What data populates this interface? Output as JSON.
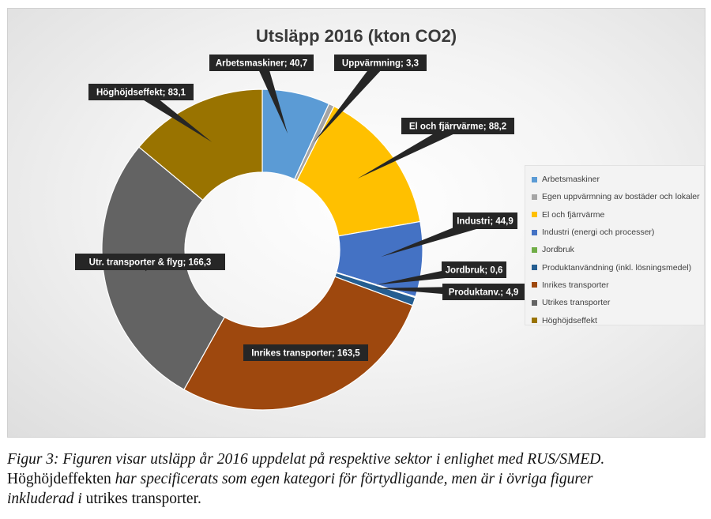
{
  "chart_data": {
    "type": "pie",
    "title": "Utsläpp 2016 (kton CO2)",
    "slices": [
      {
        "legend": "Arbetsmaskiner",
        "label": "Arbetsmaskiner; 40,7",
        "value": 40.7,
        "color": "#5B9BD5"
      },
      {
        "legend": "Egen uppvärmning av bostäder och lokaler",
        "label": "Uppvärmning; 3,3",
        "value": 3.3,
        "color": "#A5A5A5"
      },
      {
        "legend": "El och fjärrvärme",
        "label": "El och fjärrvärme; 88,2",
        "value": 88.2,
        "color": "#FFC000"
      },
      {
        "legend": "Industri (energi och processer)",
        "label": "Industri; 44,9",
        "value": 44.9,
        "color": "#4472C4"
      },
      {
        "legend": "Jordbruk",
        "label": "Jordbruk; 0,6",
        "value": 0.6,
        "color": "#70AD47"
      },
      {
        "legend": "Produktanvändning (inkl. lösningsmedel)",
        "label": "Produktanv.; 4,9",
        "value": 4.9,
        "color": "#255E91"
      },
      {
        "legend": "Inrikes transporter",
        "label": "Inrikes transporter; 163,5",
        "value": 163.5,
        "color": "#9E480E"
      },
      {
        "legend": "Utrikes transporter",
        "label": "Utr. transporter  & flyg; 166,3",
        "value": 166.3,
        "color": "#636363"
      },
      {
        "legend": "Höghöjdseffekt",
        "label": "Höghöjdseffekt; 83,1",
        "value": 83.1,
        "color": "#997300"
      }
    ],
    "legend_position": "right"
  },
  "caption": {
    "line1": "Figur 3: Figuren visar utsläpp år 2016 uppdelat på respektive sektor i enlighet med RUS/SMED.",
    "line2_a": "Höghöjdeffekten ",
    "line2_b": "har specificerats som egen kategori för förtydligande, men är i övriga figurer",
    "line3_a": "inkluderad i ",
    "line3_b": "utrikes transporter."
  }
}
